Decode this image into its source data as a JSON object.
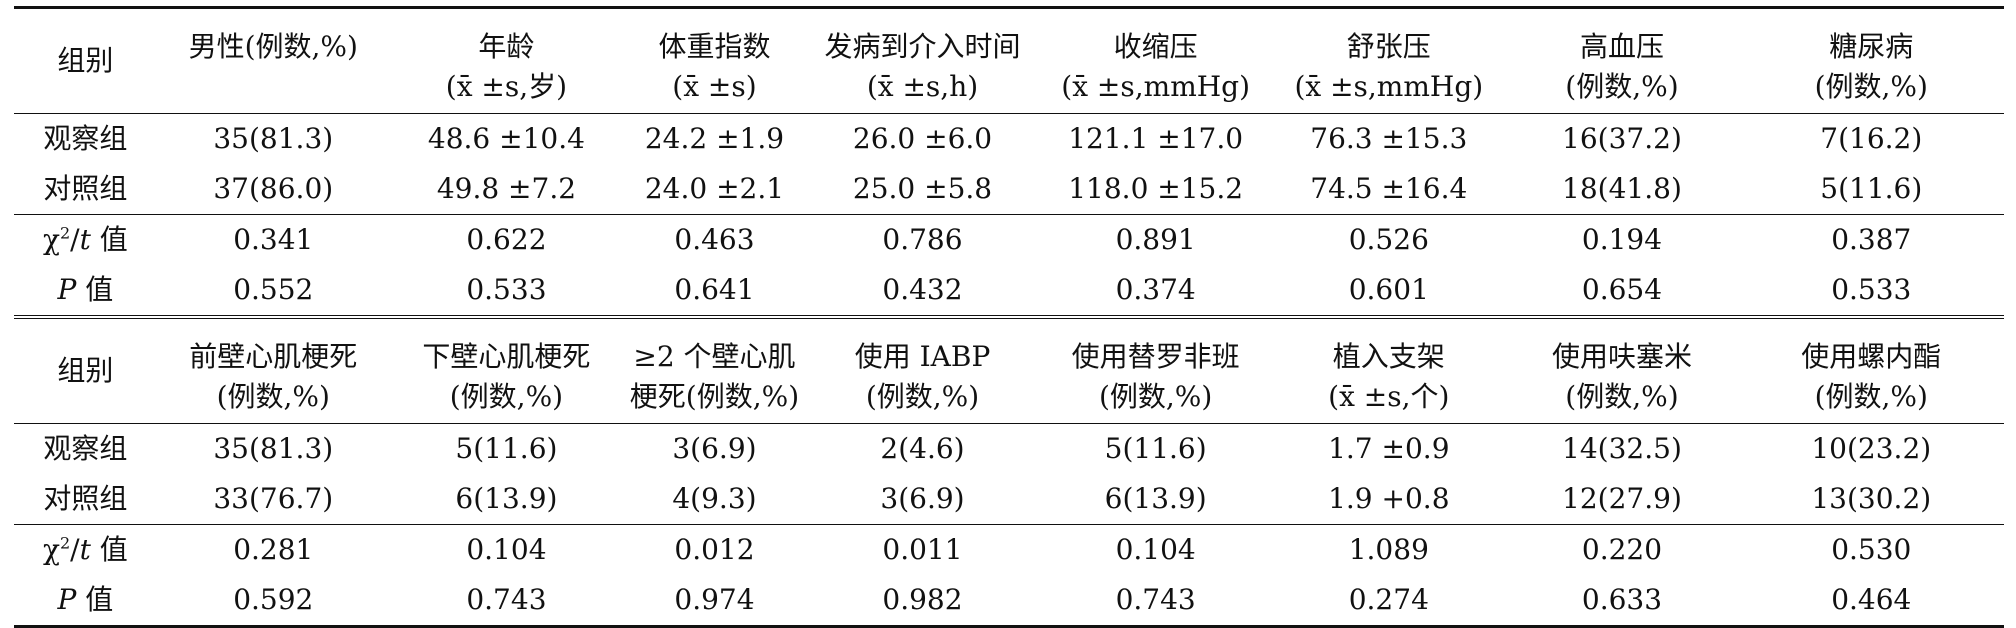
{
  "table1": {
    "group_label": "组别",
    "headers": [
      {
        "l1": "男性(例数,%)",
        "l2": ""
      },
      {
        "l1": "年龄",
        "l2": "(x̄ ±s,岁)"
      },
      {
        "l1": "体重指数",
        "l2": "(x̄ ±s)"
      },
      {
        "l1": "发病到介入时间",
        "l2": "(x̄ ±s,h)"
      },
      {
        "l1": "收缩压",
        "l2": "(x̄ ±s,mmHg)"
      },
      {
        "l1": "舒张压",
        "l2": "(x̄ ±s,mmHg)"
      },
      {
        "l1": "高血压",
        "l2": "(例数,%)"
      },
      {
        "l1": "糖尿病",
        "l2": "(例数,%)"
      }
    ],
    "rows": [
      {
        "label": "观察组",
        "cells": [
          "35(81.3)",
          "48.6 ±10.4",
          "24.2 ±1.9",
          "26.0 ±6.0",
          "121.1 ±17.0",
          "76.3 ±15.3",
          "16(37.2)",
          "7(16.2)"
        ]
      },
      {
        "label": "对照组",
        "cells": [
          "37(86.0)",
          "49.8 ±7.2",
          "24.0 ±2.1",
          "25.0 ±5.8",
          "118.0 ±15.2",
          "74.5 ±16.4",
          "18(41.8)",
          "5(11.6)"
        ]
      }
    ],
    "chi_label_a": "χ",
    "chi_label_b": "2",
    "chi_label_c": "/",
    "chi_label_d": "t",
    "chi_label_e": " 值",
    "chi": [
      "0.341",
      "0.622",
      "0.463",
      "0.786",
      "0.891",
      "0.526",
      "0.194",
      "0.387"
    ],
    "p_label_a": "P",
    "p_label_b": " 值",
    "p": [
      "0.552",
      "0.533",
      "0.641",
      "0.432",
      "0.374",
      "0.601",
      "0.654",
      "0.533"
    ]
  },
  "table2": {
    "group_label": "组别",
    "headers": [
      {
        "l1": "前壁心肌梗死",
        "l2": "(例数,%)"
      },
      {
        "l1": "下壁心肌梗死",
        "l2": "(例数,%)"
      },
      {
        "l1": "≥2 个壁心肌",
        "l2": "梗死(例数,%)"
      },
      {
        "l1": "使用 IABP",
        "l2": "(例数,%)"
      },
      {
        "l1": "使用替罗非班",
        "l2": "(例数,%)"
      },
      {
        "l1": "植入支架",
        "l2": "(x̄ ±s,个)"
      },
      {
        "l1": "使用呋塞米",
        "l2": "(例数,%)"
      },
      {
        "l1": "使用螺内酯",
        "l2": "(例数,%)"
      }
    ],
    "rows": [
      {
        "label": "观察组",
        "cells": [
          "35(81.3)",
          "5(11.6)",
          "3(6.9)",
          "2(4.6)",
          "5(11.6)",
          "1.7 ±0.9",
          "14(32.5)",
          "10(23.2)"
        ]
      },
      {
        "label": "对照组",
        "cells": [
          "33(76.7)",
          "6(13.9)",
          "4(9.3)",
          "3(6.9)",
          "6(13.9)",
          "1.9 +0.8",
          "12(27.9)",
          "13(30.2)"
        ]
      }
    ],
    "chi": [
      "0.281",
      "0.104",
      "0.012",
      "0.011",
      "0.104",
      "1.089",
      "0.220",
      "0.530"
    ],
    "p": [
      "0.592",
      "0.743",
      "0.974",
      "0.982",
      "0.743",
      "0.274",
      "0.633",
      "0.464"
    ]
  }
}
